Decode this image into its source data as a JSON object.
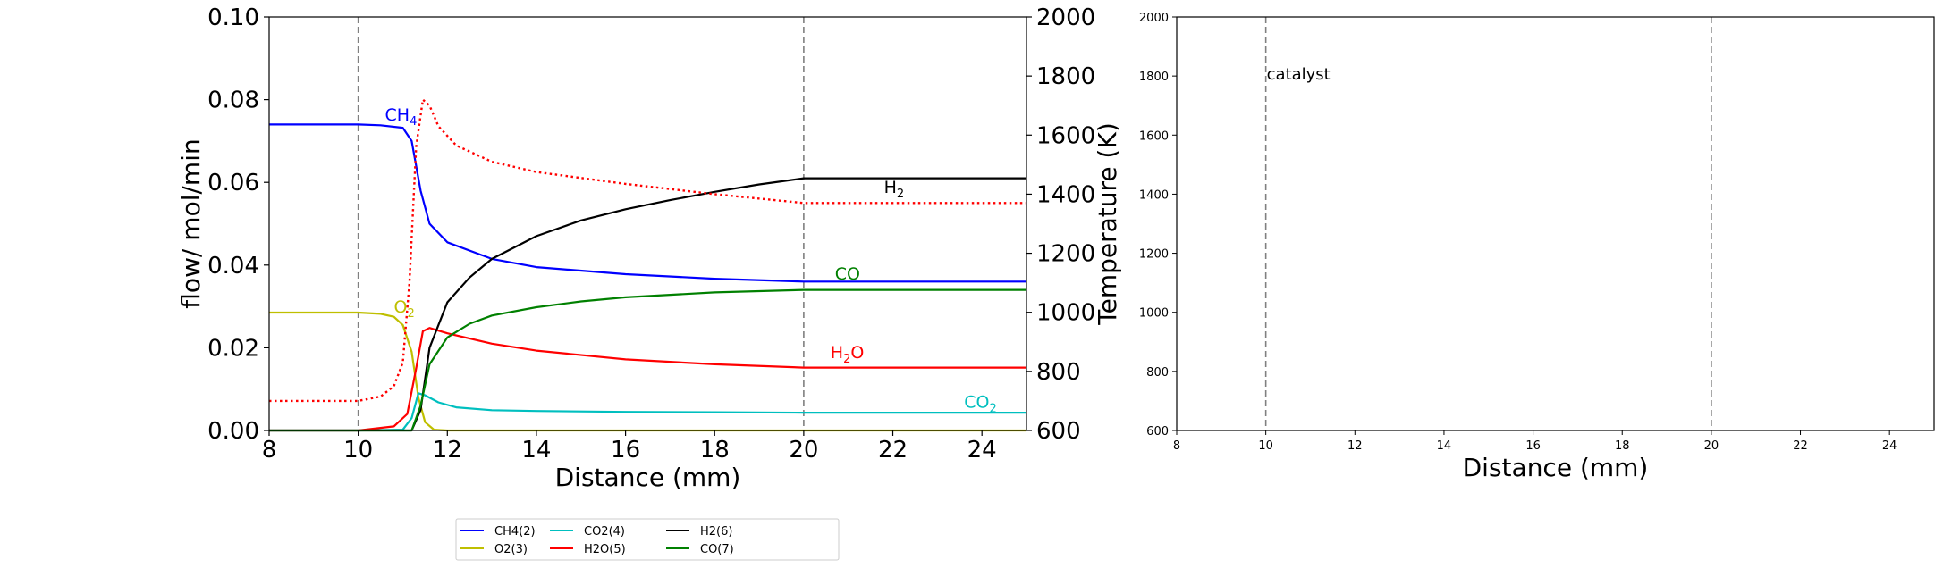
{
  "chart_data": [
    {
      "type": "line",
      "xlabel": "Distance (mm)",
      "ylabel": "flow/ mol/min",
      "ylabel_right": "Temperature (K)",
      "xlim": [
        8,
        25
      ],
      "ylim": [
        0,
        0.1
      ],
      "ylim_right": [
        600,
        2000
      ],
      "xticks": [
        "8",
        "10",
        "12",
        "14",
        "16",
        "18",
        "20",
        "22",
        "24"
      ],
      "yticks": [
        "0.00",
        "0.02",
        "0.04",
        "0.06",
        "0.08",
        "0.10"
      ],
      "yticks_right": [
        "600",
        "800",
        "1000",
        "1200",
        "1400",
        "1600",
        "1800",
        "2000"
      ],
      "vlines": [
        10,
        20
      ],
      "series": [
        {
          "name": "CH4(2)",
          "color": "#0000ff",
          "x": [
            8,
            10,
            10.5,
            11,
            11.2,
            11.4,
            11.6,
            12,
            13,
            14,
            16,
            18,
            20,
            25
          ],
          "y": [
            0.074,
            0.074,
            0.0738,
            0.0732,
            0.07,
            0.058,
            0.05,
            0.0455,
            0.0415,
            0.0395,
            0.0378,
            0.0367,
            0.036,
            0.036
          ]
        },
        {
          "name": "O2(3)",
          "color": "#bfbf00",
          "x": [
            8,
            10,
            10.5,
            10.8,
            11.0,
            11.2,
            11.35,
            11.5,
            11.7,
            12,
            25
          ],
          "y": [
            0.0285,
            0.0285,
            0.0282,
            0.0275,
            0.0255,
            0.019,
            0.008,
            0.002,
            0.0002,
            0,
            0
          ]
        },
        {
          "name": "CO2(4)",
          "color": "#00bfbf",
          "x": [
            8,
            10,
            11,
            11.2,
            11.35,
            11.5,
            11.8,
            12.2,
            13,
            14,
            16,
            18,
            20,
            25
          ],
          "y": [
            0,
            0,
            0.0002,
            0.003,
            0.009,
            0.0085,
            0.0068,
            0.0056,
            0.0049,
            0.0047,
            0.0045,
            0.0044,
            0.0043,
            0.0043
          ]
        },
        {
          "name": "H2O(5)",
          "color": "#ff0000",
          "x": [
            8,
            10,
            10.8,
            11.1,
            11.3,
            11.45,
            11.6,
            12,
            13,
            14,
            16,
            18,
            20,
            25
          ],
          "y": [
            0,
            0,
            0.001,
            0.004,
            0.015,
            0.024,
            0.0248,
            0.0235,
            0.021,
            0.0193,
            0.0172,
            0.016,
            0.0152,
            0.0152
          ]
        },
        {
          "name": "H2(6)",
          "color": "#000000",
          "x": [
            8,
            11.2,
            11.4,
            11.6,
            12,
            12.5,
            13,
            14,
            15,
            16,
            17,
            18,
            19,
            20,
            25
          ],
          "y": [
            0,
            0,
            0.005,
            0.02,
            0.031,
            0.037,
            0.0415,
            0.047,
            0.0508,
            0.0535,
            0.0557,
            0.0577,
            0.0595,
            0.061,
            0.061
          ]
        },
        {
          "name": "CO(7)",
          "color": "#008000",
          "x": [
            8,
            11.2,
            11.4,
            11.6,
            12,
            12.5,
            13,
            14,
            15,
            16,
            18,
            20,
            25
          ],
          "y": [
            0,
            0,
            0.006,
            0.016,
            0.0225,
            0.0258,
            0.0278,
            0.0298,
            0.0312,
            0.0322,
            0.0334,
            0.034,
            0.034
          ]
        },
        {
          "name": "Temperature",
          "color": "#ff0000",
          "dashed": true,
          "axis": "right",
          "x": [
            8,
            10,
            10.5,
            10.8,
            11.0,
            11.15,
            11.3,
            11.45,
            11.6,
            11.8,
            12.2,
            13,
            14,
            16,
            18,
            20,
            25
          ],
          "y": [
            700,
            700,
            715,
            750,
            830,
            1100,
            1560,
            1720,
            1700,
            1630,
            1565,
            1510,
            1475,
            1435,
            1400,
            1370,
            1370
          ]
        }
      ],
      "annotations": [
        {
          "text": "CH",
          "sub": "4",
          "x": 10.6,
          "y": 0.075,
          "color": "#0000ff"
        },
        {
          "text": "O",
          "sub": "2",
          "x": 10.8,
          "y": 0.0285,
          "color": "#bfbf00"
        },
        {
          "text": "H",
          "sub": "2",
          "x": 21.8,
          "y": 0.0575,
          "color": "#000000"
        },
        {
          "text": "CO",
          "sub": "",
          "x": 20.7,
          "y": 0.0365,
          "color": "#008000"
        },
        {
          "text": "H",
          "sub": "2",
          "after": "O",
          "x": 20.6,
          "y": 0.0175,
          "color": "#ff0000"
        },
        {
          "text": "CO",
          "sub": "2",
          "x": 23.6,
          "y": 0.0055,
          "color": "#00bfbf"
        }
      ]
    },
    {
      "type": "line",
      "xlabel": "Distance (mm)",
      "xlim": [
        8,
        25
      ],
      "ylim": [
        600,
        2000
      ],
      "xticks": [
        "8",
        "10",
        "12",
        "14",
        "16",
        "18",
        "20",
        "22",
        "24"
      ],
      "yticks": [
        "600",
        "800",
        "1000",
        "1200",
        "1400",
        "1600",
        "1800",
        "2000"
      ],
      "vlines": [
        10,
        20
      ],
      "annotations": [
        {
          "text": "catalyst",
          "x": 10,
          "y": 1810
        }
      ]
    }
  ],
  "legend": {
    "entries": [
      {
        "label": "CH4(2)",
        "color": "#0000ff"
      },
      {
        "label": "O2(3)",
        "color": "#bfbf00"
      },
      {
        "label": "CO2(4)",
        "color": "#00bfbf"
      },
      {
        "label": "H2O(5)",
        "color": "#ff0000"
      },
      {
        "label": "H2(6)",
        "color": "#000000"
      },
      {
        "label": "CO(7)",
        "color": "#008000"
      }
    ]
  }
}
